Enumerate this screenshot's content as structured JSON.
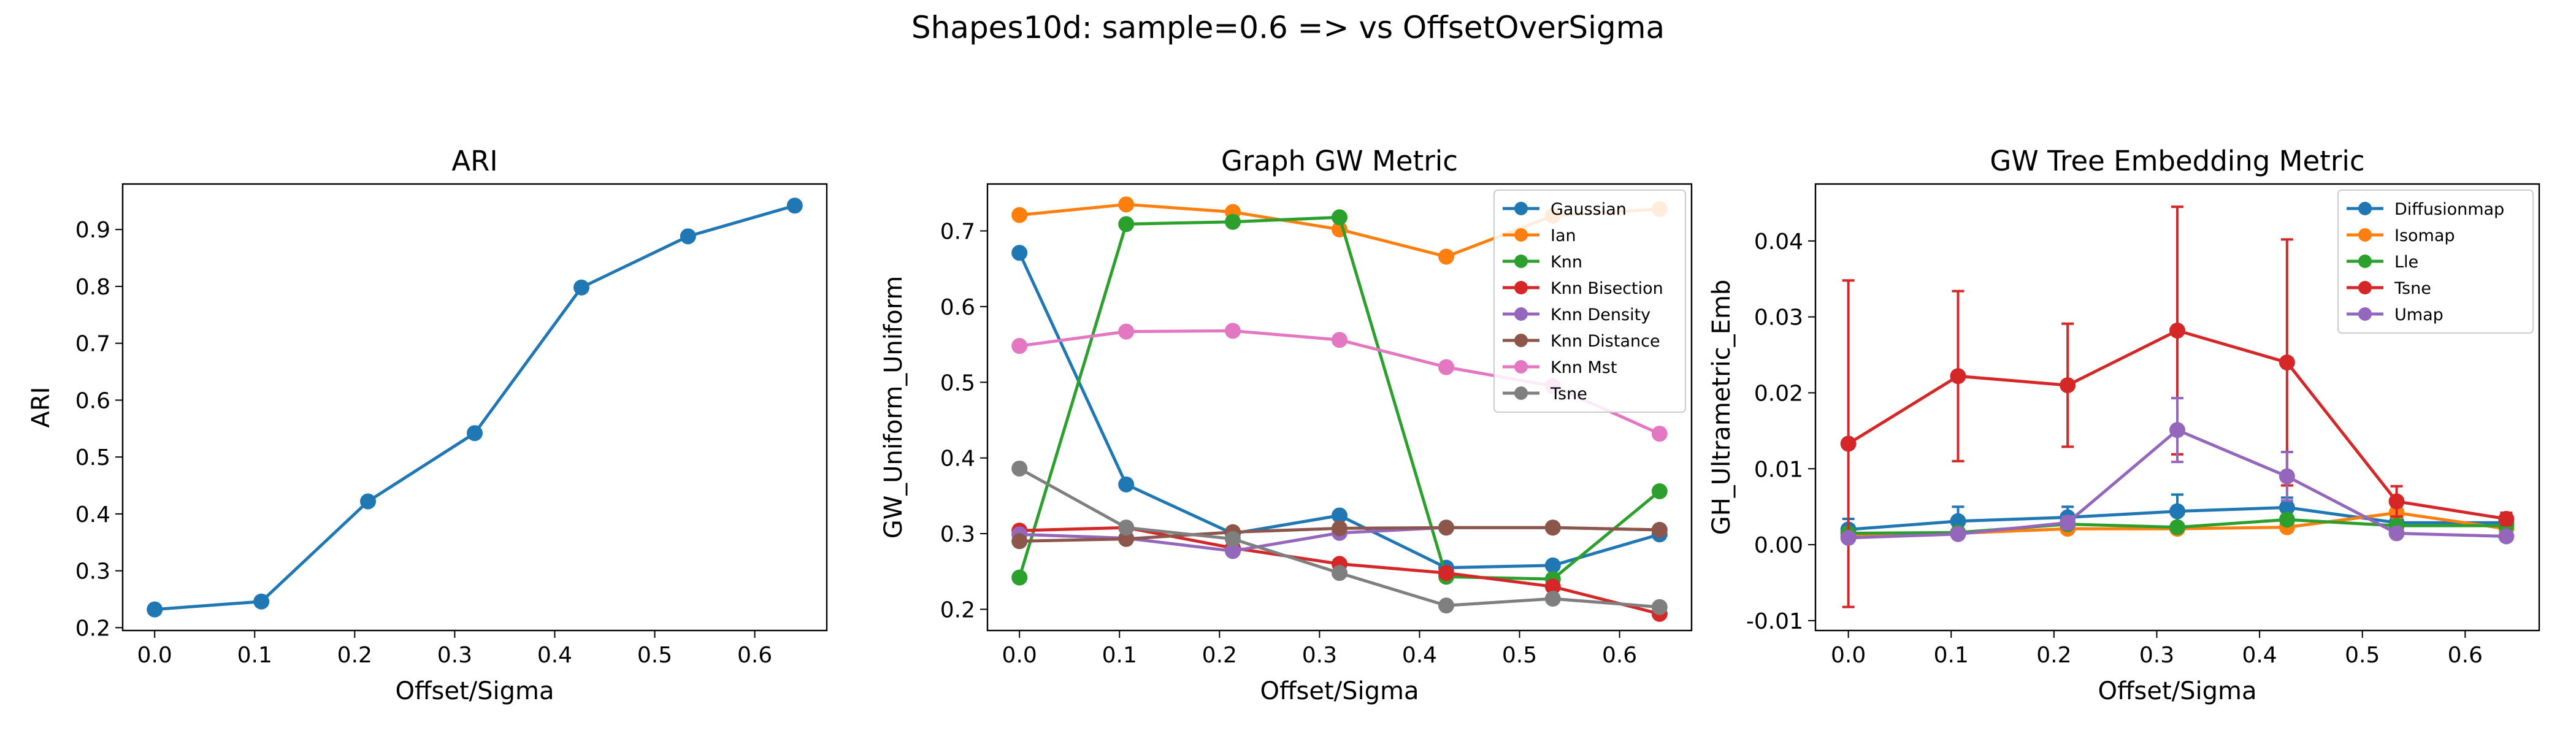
{
  "figure_title": "Shapes10d: sample=0.6 => vs OffsetOverSigma",
  "colors": {
    "blue": "#1f77b4",
    "orange": "#ff7f0e",
    "green": "#2ca02c",
    "red": "#d62728",
    "purple": "#9467bd",
    "brown": "#8c564b",
    "pink": "#e377c2",
    "gray": "#7f7f7f"
  },
  "chart_data": [
    {
      "type": "line",
      "title": "ARI",
      "xlabel": "Offset/Sigma",
      "ylabel": "ARI",
      "xlim": [
        -0.032,
        0.672
      ],
      "ylim": [
        0.195,
        0.98
      ],
      "xticks": [
        "0.0",
        "0.1",
        "0.2",
        "0.3",
        "0.4",
        "0.5",
        "0.6"
      ],
      "yticks": [
        "0.2",
        "0.3",
        "0.4",
        "0.5",
        "0.6",
        "0.7",
        "0.8",
        "0.9"
      ],
      "legend": false,
      "x": [
        0.0,
        0.1067,
        0.2133,
        0.32,
        0.4267,
        0.5333,
        0.64
      ],
      "series": [
        {
          "color": "#1f77b4",
          "values": [
            0.232,
            0.246,
            0.422,
            0.542,
            0.798,
            0.888,
            0.942
          ]
        }
      ]
    },
    {
      "type": "line",
      "title": "Graph GW Metric",
      "xlabel": "Offset/Sigma",
      "ylabel": "GW_Uniform_Uniform",
      "xlim": [
        -0.032,
        0.672
      ],
      "ylim": [
        0.172,
        0.762
      ],
      "xticks": [
        "0.0",
        "0.1",
        "0.2",
        "0.3",
        "0.4",
        "0.5",
        "0.6"
      ],
      "yticks": [
        "0.2",
        "0.3",
        "0.4",
        "0.5",
        "0.6",
        "0.7"
      ],
      "legend": "upper right",
      "x": [
        0.0,
        0.1067,
        0.2133,
        0.32,
        0.4267,
        0.5333,
        0.64
      ],
      "series": [
        {
          "name": "Gaussian",
          "color": "#1f77b4",
          "values": [
            0.671,
            0.365,
            0.3,
            0.324,
            0.255,
            0.258,
            0.299
          ]
        },
        {
          "name": "Ian",
          "color": "#ff7f0e",
          "values": [
            0.721,
            0.735,
            0.725,
            0.702,
            0.666,
            0.72,
            0.729
          ]
        },
        {
          "name": "Knn",
          "color": "#2ca02c",
          "values": [
            0.242,
            0.709,
            0.712,
            0.718,
            0.243,
            0.24,
            0.356
          ]
        },
        {
          "name": "Knn Bisection",
          "color": "#d62728",
          "values": [
            0.304,
            0.308,
            0.281,
            0.26,
            0.248,
            0.23,
            0.194
          ]
        },
        {
          "name": "Knn Density",
          "color": "#9467bd",
          "values": [
            0.299,
            0.294,
            0.277,
            0.301,
            0.308,
            0.308,
            0.305
          ]
        },
        {
          "name": "Knn Distance",
          "color": "#8c564b",
          "values": [
            0.29,
            0.293,
            0.302,
            0.307,
            0.308,
            0.308,
            0.305
          ]
        },
        {
          "name": "Knn Mst",
          "color": "#e377c2",
          "values": [
            0.548,
            0.567,
            0.568,
            0.556,
            0.52,
            0.495,
            0.432
          ]
        },
        {
          "name": "Tsne",
          "color": "#7f7f7f",
          "values": [
            0.386,
            0.308,
            0.293,
            0.248,
            0.205,
            0.214,
            0.203
          ]
        }
      ]
    },
    {
      "type": "line",
      "title": "GW Tree Embedding Metric",
      "xlabel": "Offset/Sigma",
      "ylabel": "GH_Ultrametric_Emb",
      "xlim": [
        -0.032,
        0.672
      ],
      "ylim": [
        -0.0113,
        0.0475
      ],
      "xticks": [
        "0.0",
        "0.1",
        "0.2",
        "0.3",
        "0.4",
        "0.5",
        "0.6"
      ],
      "yticks": [
        "-0.01",
        "0.00",
        "0.01",
        "0.02",
        "0.03",
        "0.04"
      ],
      "legend": "upper right",
      "error_bars": true,
      "x": [
        0.0,
        0.1067,
        0.2133,
        0.32,
        0.4267,
        0.5333,
        0.64
      ],
      "series": [
        {
          "name": "Diffusionmap",
          "color": "#1f77b4",
          "values": [
            0.002,
            0.0031,
            0.0036,
            0.0044,
            0.0049,
            0.0029,
            0.0029
          ],
          "err": [
            0.0014,
            0.0019,
            0.0014,
            0.0022,
            0.0013,
            0.0007,
            0.0006
          ]
        },
        {
          "name": "Isomap",
          "color": "#ff7f0e",
          "values": [
            0.0011,
            0.0015,
            0.0021,
            0.0021,
            0.0023,
            0.0042,
            0.0021
          ],
          "err": [
            0.0005,
            0.0005,
            0.0004,
            0.0004,
            0.0004,
            0.0006,
            0.0004
          ]
        },
        {
          "name": "Lle",
          "color": "#2ca02c",
          "values": [
            0.0015,
            0.0016,
            0.0027,
            0.0023,
            0.0033,
            0.0025,
            0.0025
          ],
          "err": [
            0.0005,
            0.0005,
            0.0005,
            0.0005,
            0.0006,
            0.0005,
            0.0005
          ]
        },
        {
          "name": "Tsne",
          "color": "#d62728",
          "values": [
            0.0133,
            0.0222,
            0.021,
            0.0282,
            0.024,
            0.0057,
            0.0034
          ],
          "err": [
            0.0215,
            0.0112,
            0.0081,
            0.0163,
            0.0162,
            0.002,
            0.0008
          ]
        },
        {
          "name": "Umap",
          "color": "#9467bd",
          "values": [
            0.0009,
            0.0014,
            0.0029,
            0.0151,
            0.009,
            0.0015,
            0.0011
          ],
          "err": [
            0.0003,
            0.0004,
            0.0008,
            0.0042,
            0.0032,
            0.0005,
            0.0004
          ]
        }
      ]
    }
  ]
}
